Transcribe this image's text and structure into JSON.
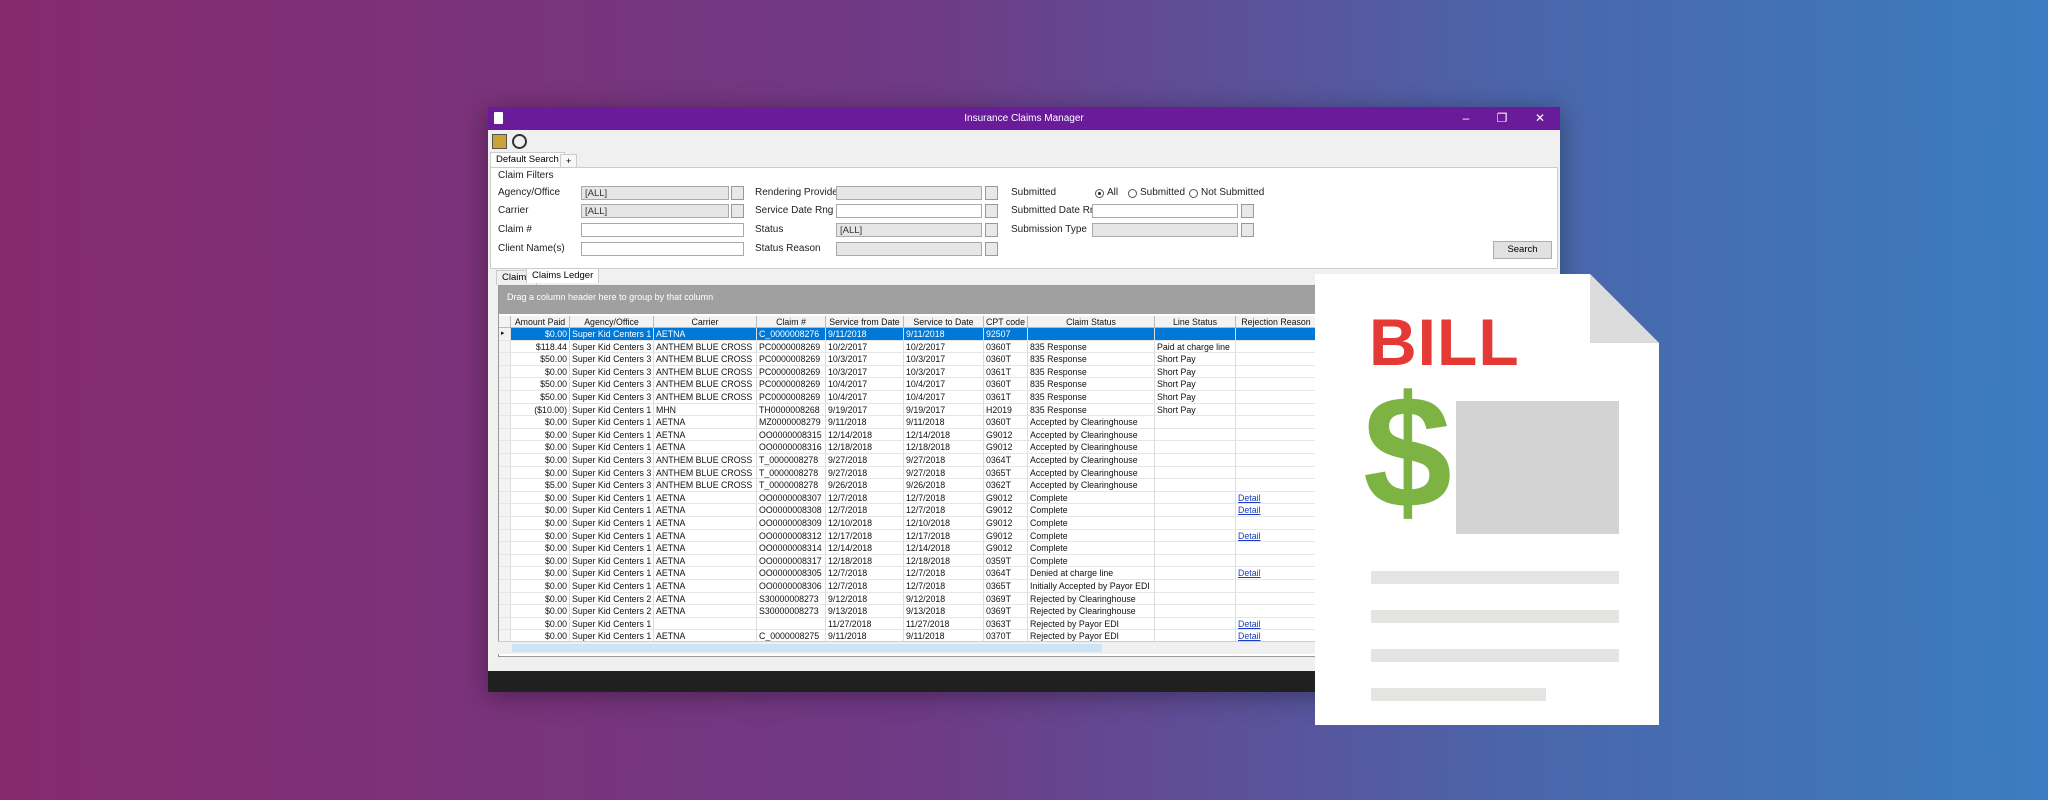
{
  "window": {
    "title": "Insurance Claims Manager"
  },
  "tabs": [
    "Default Search",
    "+"
  ],
  "filters": {
    "title": "Claim Filters",
    "agency": {
      "label": "Agency/Office",
      "value": "[ALL]"
    },
    "carrier": {
      "label": "Carrier",
      "value": "[ALL]"
    },
    "claim_no": {
      "label": "Claim #"
    },
    "client": {
      "label": "Client Name(s)"
    },
    "provider": {
      "label": "Rendering Provider"
    },
    "service_range": {
      "label": "Service Date Rng"
    },
    "status": {
      "label": "Status",
      "value": "[ALL]"
    },
    "status_reason": {
      "label": "Status Reason"
    },
    "submitted": {
      "label": "Submitted",
      "options": [
        "All",
        "Submitted",
        "Not Submitted"
      ]
    },
    "submitted_range": {
      "label": "Submitted Date Rng"
    },
    "submission_type": {
      "label": "Submission Type"
    },
    "search_button": "Search"
  },
  "result_tabs": [
    "Claims",
    "Claims Ledger"
  ],
  "grid": {
    "group_hint": "Drag a column header here to group by that column",
    "columns": [
      "Amount Paid",
      "Agency/Office",
      "Carrier",
      "Claim #",
      "Service from Date",
      "Service to Date",
      "CPT code",
      "Claim Status",
      "Line Status",
      "Rejection Reason"
    ],
    "rows": [
      [
        "$0.00",
        "Super Kid Centers 1",
        "AETNA",
        "C_0000008276",
        "9/11/2018",
        "9/11/2018",
        "92507",
        null,
        null,
        null
      ],
      [
        "$118.44",
        "Super Kid Centers 3",
        "ANTHEM BLUE CROSS",
        "PC0000008269",
        "10/2/2017",
        "10/2/2017",
        "0360T",
        "835 Response",
        "Paid at charge line",
        null
      ],
      [
        "$50.00",
        "Super Kid Centers 3",
        "ANTHEM BLUE CROSS",
        "PC0000008269",
        "10/3/2017",
        "10/3/2017",
        "0360T",
        "835 Response",
        "Short Pay",
        null
      ],
      [
        "$0.00",
        "Super Kid Centers 3",
        "ANTHEM BLUE CROSS",
        "PC0000008269",
        "10/3/2017",
        "10/3/2017",
        "0361T",
        "835 Response",
        "Short Pay",
        null
      ],
      [
        "$50.00",
        "Super Kid Centers 3",
        "ANTHEM BLUE CROSS",
        "PC0000008269",
        "10/4/2017",
        "10/4/2017",
        "0360T",
        "835 Response",
        "Short Pay",
        null
      ],
      [
        "$50.00",
        "Super Kid Centers 3",
        "ANTHEM BLUE CROSS",
        "PC0000008269",
        "10/4/2017",
        "10/4/2017",
        "0361T",
        "835 Response",
        "Short Pay",
        null
      ],
      [
        "($10.00)",
        "Super Kid Centers 1",
        "MHN",
        "TH0000008268",
        "9/19/2017",
        "9/19/2017",
        "H2019",
        "835 Response",
        "Short Pay",
        null
      ],
      [
        "$0.00",
        "Super Kid Centers 1",
        "AETNA",
        "MZ0000008279",
        "9/11/2018",
        "9/11/2018",
        "0360T",
        "Accepted by Clearinghouse",
        null,
        null
      ],
      [
        "$0.00",
        "Super Kid Centers 1",
        "AETNA",
        "OO0000008315",
        "12/14/2018",
        "12/14/2018",
        "G9012",
        "Accepted by Clearinghouse",
        null,
        null
      ],
      [
        "$0.00",
        "Super Kid Centers 1",
        "AETNA",
        "OO0000008316",
        "12/18/2018",
        "12/18/2018",
        "G9012",
        "Accepted by Clearinghouse",
        null,
        null
      ],
      [
        "$0.00",
        "Super Kid Centers 3",
        "ANTHEM BLUE CROSS",
        "T_0000008278",
        "9/27/2018",
        "9/27/2018",
        "0364T",
        "Accepted by Clearinghouse",
        null,
        null
      ],
      [
        "$0.00",
        "Super Kid Centers 3",
        "ANTHEM BLUE CROSS",
        "T_0000008278",
        "9/27/2018",
        "9/27/2018",
        "0365T",
        "Accepted by Clearinghouse",
        null,
        null
      ],
      [
        "$5.00",
        "Super Kid Centers 3",
        "ANTHEM BLUE CROSS",
        "T_0000008278",
        "9/26/2018",
        "9/26/2018",
        "0362T",
        "Accepted by Clearinghouse",
        null,
        null
      ],
      [
        "$0.00",
        "Super Kid Centers 1",
        "AETNA",
        "OO0000008307",
        "12/7/2018",
        "12/7/2018",
        "G9012",
        "Complete",
        null,
        "Detail"
      ],
      [
        "$0.00",
        "Super Kid Centers 1",
        "AETNA",
        "OO0000008308",
        "12/7/2018",
        "12/7/2018",
        "G9012",
        "Complete",
        null,
        "Detail"
      ],
      [
        "$0.00",
        "Super Kid Centers 1",
        "AETNA",
        "OO0000008309",
        "12/10/2018",
        "12/10/2018",
        "G9012",
        "Complete",
        null,
        null
      ],
      [
        "$0.00",
        "Super Kid Centers 1",
        "AETNA",
        "OO0000008312",
        "12/17/2018",
        "12/17/2018",
        "G9012",
        "Complete",
        null,
        "Detail"
      ],
      [
        "$0.00",
        "Super Kid Centers 1",
        "AETNA",
        "OO0000008314",
        "12/14/2018",
        "12/14/2018",
        "G9012",
        "Complete",
        null,
        null
      ],
      [
        "$0.00",
        "Super Kid Centers 1",
        "AETNA",
        "OO0000008317",
        "12/18/2018",
        "12/18/2018",
        "0359T",
        "Complete",
        null,
        null
      ],
      [
        "$0.00",
        "Super Kid Centers 1",
        "AETNA",
        "OO0000008305",
        "12/7/2018",
        "12/7/2018",
        "0364T",
        "Denied at charge line",
        null,
        "Detail"
      ],
      [
        "$0.00",
        "Super Kid Centers 1",
        "AETNA",
        "OO0000008306",
        "12/7/2018",
        "12/7/2018",
        "0365T",
        "Initially Accepted by Payor EDI",
        null,
        null
      ],
      [
        "$0.00",
        "Super Kid Centers 2",
        "AETNA",
        "S30000008273",
        "9/12/2018",
        "9/12/2018",
        "0369T",
        "Rejected by Clearinghouse",
        null,
        null
      ],
      [
        "$0.00",
        "Super Kid Centers 2",
        "AETNA",
        "S30000008273",
        "9/13/2018",
        "9/13/2018",
        "0369T",
        "Rejected by Clearinghouse",
        null,
        null
      ],
      [
        "$0.00",
        "Super Kid Centers 1",
        null,
        null,
        "11/27/2018",
        "11/27/2018",
        "0363T",
        "Rejected by Payor EDI",
        null,
        "Detail"
      ],
      [
        "$0.00",
        "Super Kid Centers 1",
        "AETNA",
        "C_0000008275",
        "9/11/2018",
        "9/11/2018",
        "0370T",
        "Rejected by Payor EDI",
        null,
        "Detail"
      ]
    ]
  },
  "bill": {
    "title": "BILL",
    "symbol": "$"
  }
}
